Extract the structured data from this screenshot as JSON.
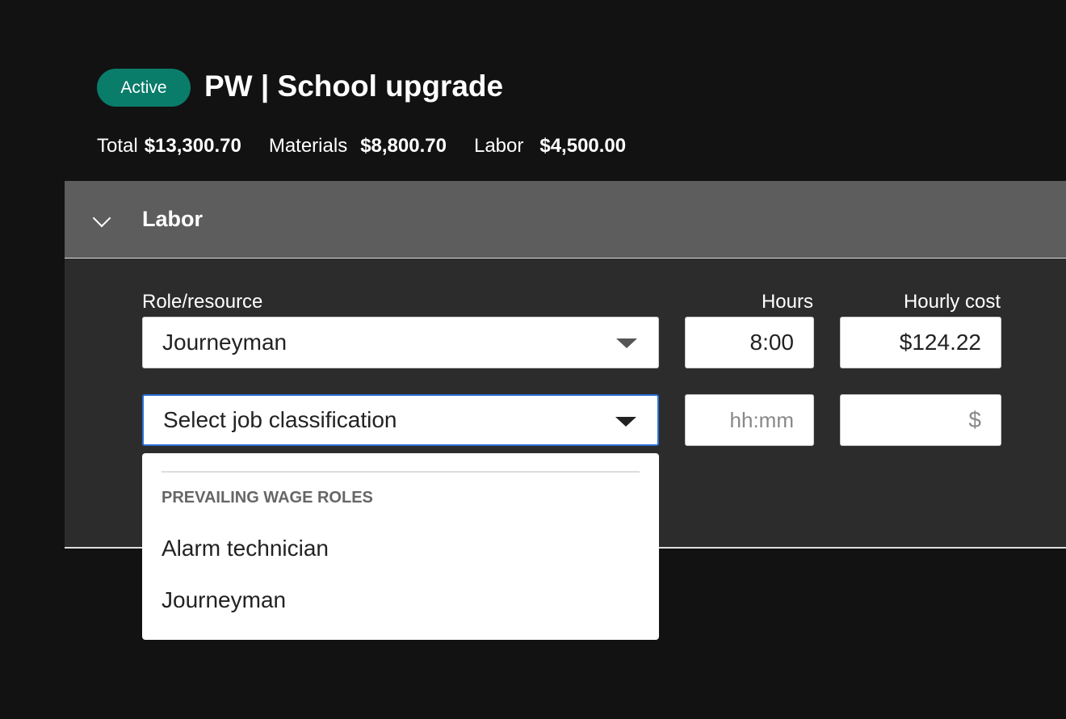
{
  "header": {
    "status": "Active",
    "title": "PW | School upgrade",
    "total_label": "Total",
    "total": "$13,300.70",
    "materials_label": "Materials",
    "materials": "$8,800.70",
    "labor_label": "Labor",
    "labor": "$4,500.00"
  },
  "section": {
    "title": "Labor",
    "columns": {
      "role": "Role/resource",
      "hours": "Hours",
      "cost": "Hourly cost"
    },
    "rows": [
      {
        "role": "Journeyman",
        "hours": "8:00",
        "cost": "$124.22"
      },
      {
        "role_placeholder": "Select job classification",
        "hours_placeholder": "hh:mm",
        "cost_placeholder": "$"
      }
    ]
  },
  "dropdown": {
    "group": "PREVAILING WAGE ROLES",
    "options": [
      "Alarm technician",
      "Journeyman"
    ]
  },
  "colors": {
    "accent": "#0a7c6a",
    "focus": "#2a6fd6"
  }
}
